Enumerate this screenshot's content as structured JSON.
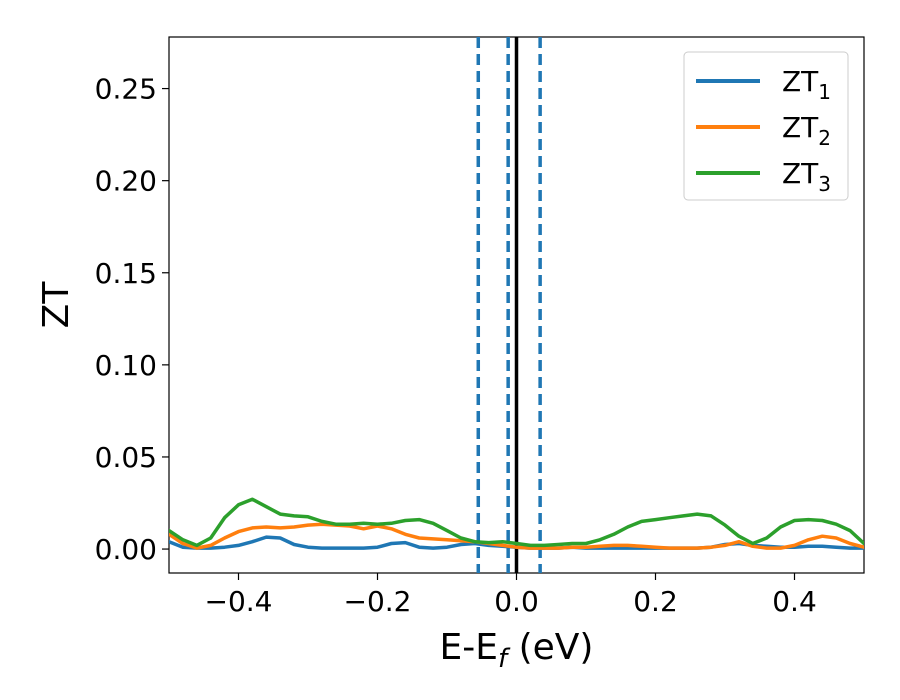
{
  "chart_data": {
    "type": "line",
    "xlabel": "E-E",
    "xlabel_sub": "f",
    "xlabel_unit": " (eV)",
    "ylabel": "ZT",
    "xlim": [
      -0.5,
      0.5
    ],
    "ylim": [
      -0.013,
      0.278
    ],
    "xticks": [
      -0.4,
      -0.2,
      0.0,
      0.2,
      0.4
    ],
    "xtick_labels": [
      "−0.4",
      "−0.2",
      "0.0",
      "0.2",
      "0.4"
    ],
    "yticks": [
      0.0,
      0.05,
      0.1,
      0.15,
      0.2,
      0.25
    ],
    "ytick_labels": [
      "0.00",
      "0.05",
      "0.10",
      "0.15",
      "0.20",
      "0.25"
    ],
    "grid": false,
    "legend_position": "top-right",
    "vlines": [
      {
        "x": 0.0,
        "color": "#000000",
        "style": "solid"
      },
      {
        "x": -0.055,
        "color": "#1f77b4",
        "style": "dashed"
      },
      {
        "x": -0.012,
        "color": "#1f77b4",
        "style": "dashed"
      },
      {
        "x": 0.034,
        "color": "#1f77b4",
        "style": "dashed"
      }
    ],
    "series": [
      {
        "name": "ZT",
        "name_sub": "1",
        "color": "#1f77b4",
        "x": [
          -0.5,
          -0.48,
          -0.46,
          -0.44,
          -0.42,
          -0.4,
          -0.38,
          -0.36,
          -0.34,
          -0.32,
          -0.3,
          -0.28,
          -0.26,
          -0.24,
          -0.22,
          -0.2,
          -0.18,
          -0.16,
          -0.14,
          -0.12,
          -0.1,
          -0.08,
          -0.06,
          -0.04,
          -0.02,
          0.0,
          0.02,
          0.04,
          0.06,
          0.08,
          0.1,
          0.12,
          0.14,
          0.16,
          0.18,
          0.2,
          0.22,
          0.24,
          0.26,
          0.28,
          0.3,
          0.32,
          0.34,
          0.36,
          0.38,
          0.4,
          0.42,
          0.44,
          0.46,
          0.48,
          0.5
        ],
        "y": [
          0.004,
          0.001,
          0.0005,
          0.0005,
          0.001,
          0.002,
          0.004,
          0.0065,
          0.006,
          0.0025,
          0.001,
          0.0005,
          0.0005,
          0.0005,
          0.0005,
          0.001,
          0.003,
          0.0035,
          0.001,
          0.0005,
          0.001,
          0.0025,
          0.003,
          0.002,
          0.0015,
          0.001,
          0.0005,
          0.0005,
          0.0005,
          0.001,
          0.0005,
          0.0005,
          0.0005,
          0.0005,
          0.0005,
          0.0005,
          0.0005,
          0.0005,
          0.0005,
          0.001,
          0.0025,
          0.003,
          0.002,
          0.0015,
          0.001,
          0.001,
          0.0015,
          0.0015,
          0.001,
          0.0005,
          0.0005
        ]
      },
      {
        "name": "ZT",
        "name_sub": "2",
        "color": "#ff7f0e",
        "x": [
          -0.5,
          -0.48,
          -0.46,
          -0.44,
          -0.42,
          -0.4,
          -0.38,
          -0.36,
          -0.34,
          -0.32,
          -0.3,
          -0.28,
          -0.26,
          -0.24,
          -0.22,
          -0.2,
          -0.18,
          -0.16,
          -0.14,
          -0.12,
          -0.1,
          -0.08,
          -0.06,
          -0.04,
          -0.02,
          0.0,
          0.02,
          0.04,
          0.06,
          0.08,
          0.1,
          0.12,
          0.14,
          0.16,
          0.18,
          0.2,
          0.22,
          0.24,
          0.26,
          0.28,
          0.3,
          0.32,
          0.34,
          0.36,
          0.38,
          0.4,
          0.42,
          0.44,
          0.46,
          0.48,
          0.5
        ],
        "y": [
          0.008,
          0.003,
          0.0005,
          0.002,
          0.006,
          0.0095,
          0.0115,
          0.012,
          0.0115,
          0.012,
          0.013,
          0.0135,
          0.013,
          0.0125,
          0.011,
          0.0125,
          0.011,
          0.008,
          0.006,
          0.0055,
          0.005,
          0.0045,
          0.004,
          0.003,
          0.002,
          0.001,
          0.0005,
          0.0005,
          0.0005,
          0.001,
          0.001,
          0.0015,
          0.002,
          0.002,
          0.0015,
          0.001,
          0.0005,
          0.0005,
          0.0005,
          0.001,
          0.002,
          0.004,
          0.0015,
          0.0005,
          0.0005,
          0.002,
          0.005,
          0.007,
          0.006,
          0.003,
          0.001
        ]
      },
      {
        "name": "ZT",
        "name_sub": "3",
        "color": "#2ca02c",
        "x": [
          -0.5,
          -0.48,
          -0.46,
          -0.44,
          -0.42,
          -0.4,
          -0.38,
          -0.36,
          -0.34,
          -0.32,
          -0.3,
          -0.28,
          -0.26,
          -0.24,
          -0.22,
          -0.2,
          -0.18,
          -0.16,
          -0.14,
          -0.12,
          -0.1,
          -0.08,
          -0.06,
          -0.04,
          -0.02,
          0.0,
          0.02,
          0.04,
          0.06,
          0.08,
          0.1,
          0.12,
          0.14,
          0.16,
          0.18,
          0.2,
          0.22,
          0.24,
          0.26,
          0.28,
          0.3,
          0.32,
          0.34,
          0.36,
          0.38,
          0.4,
          0.42,
          0.44,
          0.46,
          0.48,
          0.5
        ],
        "y": [
          0.01,
          0.005,
          0.002,
          0.006,
          0.017,
          0.024,
          0.027,
          0.023,
          0.019,
          0.018,
          0.0175,
          0.015,
          0.0135,
          0.0135,
          0.014,
          0.0135,
          0.014,
          0.0155,
          0.016,
          0.014,
          0.01,
          0.006,
          0.004,
          0.0035,
          0.004,
          0.003,
          0.002,
          0.002,
          0.0025,
          0.003,
          0.003,
          0.005,
          0.008,
          0.012,
          0.015,
          0.016,
          0.017,
          0.018,
          0.019,
          0.018,
          0.013,
          0.007,
          0.003,
          0.006,
          0.012,
          0.0155,
          0.016,
          0.0155,
          0.0135,
          0.01,
          0.003
        ]
      }
    ]
  }
}
